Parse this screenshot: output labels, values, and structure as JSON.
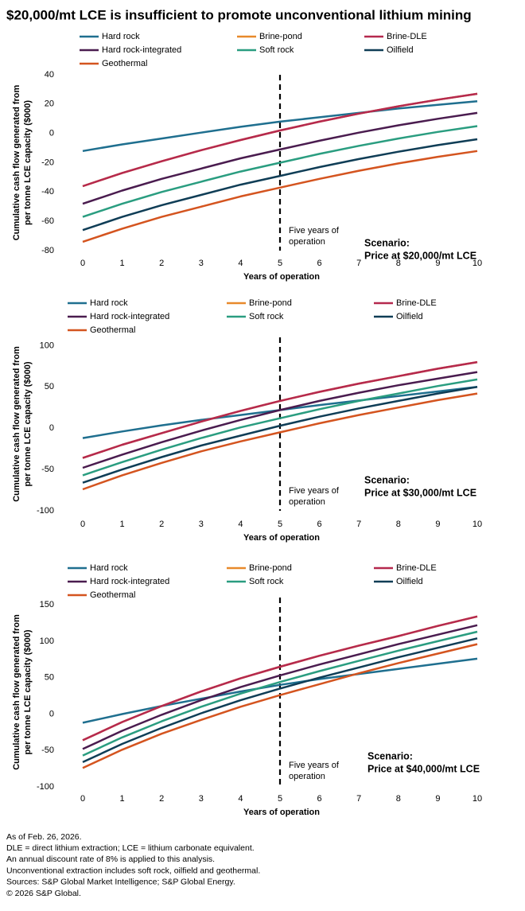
{
  "title": "$20,000/mt LCE is insufficient to promote unconventional lithium mining",
  "chart_data": [
    {
      "type": "line",
      "y_label": [
        "Cumulative cash flow generated from",
        "per tonne LCE capacity ($000)"
      ],
      "x_label": "Years of operation",
      "x": [
        0,
        1,
        2,
        3,
        4,
        5,
        6,
        7,
        8,
        9,
        10
      ],
      "xlim": [
        0,
        10
      ],
      "xticks": [
        0,
        1,
        2,
        3,
        4,
        5,
        6,
        7,
        8,
        9,
        10
      ],
      "ylim": [
        -80,
        40
      ],
      "yticks": [
        -80,
        -60,
        -40,
        -20,
        0,
        20,
        40
      ],
      "marker_x": 5,
      "annotation": [
        "Five years of",
        "operation"
      ],
      "scenario": [
        "Scenario:",
        "Price at $20,000/mt LCE"
      ],
      "series": [
        {
          "name": "Hard rock",
          "color": "#1f6f8f",
          "values": [
            -12,
            -7.5,
            -3.5,
            0.5,
            4.5,
            8,
            11,
            14,
            17,
            19.5,
            22
          ]
        },
        {
          "name": "Brine-pond",
          "color": "#e8892b",
          "values": [
            -36,
            -27,
            -19,
            -11.5,
            -4.5,
            2,
            8,
            13.5,
            18.5,
            23,
            27
          ]
        },
        {
          "name": "Brine-DLE",
          "color": "#b5294e",
          "values": [
            -36,
            -27,
            -19,
            -11.5,
            -4.5,
            2,
            8,
            13.5,
            18.5,
            23,
            27
          ]
        },
        {
          "name": "Hard rock-integrated",
          "color": "#4a1c4f",
          "values": [
            -48,
            -39,
            -31,
            -24,
            -17,
            -11,
            -5,
            0.5,
            5.5,
            10,
            14
          ]
        },
        {
          "name": "Soft rock",
          "color": "#2a9d80",
          "values": [
            -57,
            -48,
            -40,
            -33,
            -26,
            -20,
            -14,
            -8.5,
            -3.5,
            1,
            5
          ]
        },
        {
          "name": "Oilfield",
          "color": "#0f3d56",
          "values": [
            -66,
            -57,
            -49,
            -42,
            -35,
            -29,
            -23,
            -17.5,
            -12.5,
            -8,
            -4
          ]
        },
        {
          "name": "Geothermal",
          "color": "#d4541f",
          "values": [
            -74,
            -65,
            -57,
            -50,
            -43,
            -37,
            -31,
            -25.5,
            -20.5,
            -16,
            -12
          ]
        }
      ]
    },
    {
      "type": "line",
      "y_label": [
        "Cumulative cash flow generated from",
        "per tonne LCE capacity ($000)"
      ],
      "x_label": "Years of operation",
      "x": [
        0,
        1,
        2,
        3,
        4,
        5,
        6,
        7,
        8,
        9,
        10
      ],
      "xlim": [
        0,
        10
      ],
      "xticks": [
        0,
        1,
        2,
        3,
        4,
        5,
        6,
        7,
        8,
        9,
        10
      ],
      "ylim": [
        -100,
        110
      ],
      "yticks": [
        -100,
        -50,
        0,
        50,
        100
      ],
      "marker_x": 5,
      "annotation": [
        "Five years of",
        "operation"
      ],
      "scenario": [
        "Scenario:",
        "Price at $30,000/mt LCE"
      ],
      "series": [
        {
          "name": "Hard rock",
          "color": "#1f6f8f",
          "values": [
            -12,
            -4,
            3.5,
            10,
            16,
            22,
            28,
            33.5,
            39,
            44.5,
            50
          ]
        },
        {
          "name": "Brine-pond",
          "color": "#e8892b",
          "values": [
            -36,
            -20,
            -6,
            8,
            21,
            33,
            44,
            54,
            63,
            72,
            80
          ]
        },
        {
          "name": "Brine-DLE",
          "color": "#b5294e",
          "values": [
            -36,
            -20,
            -6,
            8,
            21,
            33,
            44,
            54,
            63,
            72,
            80
          ]
        },
        {
          "name": "Hard rock-integrated",
          "color": "#4a1c4f",
          "values": [
            -48,
            -32,
            -17,
            -3,
            10,
            22,
            33,
            43,
            52,
            60,
            68
          ]
        },
        {
          "name": "Soft rock",
          "color": "#2a9d80",
          "values": [
            -57,
            -41,
            -26,
            -12,
            1,
            12,
            23,
            33,
            42,
            51,
            59
          ]
        },
        {
          "name": "Oilfield",
          "color": "#0f3d56",
          "values": [
            -66,
            -50,
            -35,
            -21,
            -9,
            3,
            14,
            24,
            33,
            42,
            50
          ]
        },
        {
          "name": "Geothermal",
          "color": "#d4541f",
          "values": [
            -74,
            -57,
            -42,
            -28,
            -16,
            -5,
            6,
            16,
            25,
            34,
            42
          ]
        }
      ]
    },
    {
      "type": "line",
      "y_label": [
        "Cumulative cash flow generated from",
        "per tonne LCE capacity ($000)"
      ],
      "x_label": "Years of operation",
      "x": [
        0,
        1,
        2,
        3,
        4,
        5,
        6,
        7,
        8,
        9,
        10
      ],
      "xlim": [
        0,
        10
      ],
      "xticks": [
        0,
        1,
        2,
        3,
        4,
        5,
        6,
        7,
        8,
        9,
        10
      ],
      "ylim": [
        -100,
        160
      ],
      "yticks": [
        -100,
        -50,
        0,
        50,
        100,
        150
      ],
      "marker_x": 5,
      "annotation": [
        "Five years of",
        "operation"
      ],
      "scenario": [
        "Scenario:",
        "Price at $40,000/mt LCE"
      ],
      "series": [
        {
          "name": "Hard rock",
          "color": "#1f6f8f",
          "values": [
            -12,
            0,
            11,
            21,
            31,
            40,
            48,
            55,
            62,
            69,
            76
          ]
        },
        {
          "name": "Brine-pond",
          "color": "#e8892b",
          "values": [
            -36,
            -11,
            11,
            31,
            49,
            65,
            80,
            94,
            107,
            121,
            134
          ]
        },
        {
          "name": "Brine-DLE",
          "color": "#b5294e",
          "values": [
            -36,
            -11,
            11,
            31,
            49,
            65,
            80,
            94,
            107,
            121,
            134
          ]
        },
        {
          "name": "Hard rock-integrated",
          "color": "#4a1c4f",
          "values": [
            -48,
            -23,
            -1,
            19,
            37,
            53,
            68,
            82,
            96,
            109,
            122
          ]
        },
        {
          "name": "Soft rock",
          "color": "#2a9d80",
          "values": [
            -57,
            -32,
            -10,
            10,
            28,
            44,
            59,
            73,
            87,
            100,
            113
          ]
        },
        {
          "name": "Oilfield",
          "color": "#0f3d56",
          "values": [
            -66,
            -41,
            -19,
            1,
            19,
            35,
            50,
            64,
            78,
            91,
            104
          ]
        },
        {
          "name": "Geothermal",
          "color": "#d4541f",
          "values": [
            -74,
            -49,
            -27,
            -8,
            10,
            26,
            41,
            56,
            70,
            83,
            96
          ]
        }
      ]
    }
  ],
  "footnotes": [
    "As of Feb. 26, 2026.",
    "DLE = direct lithium extraction; LCE = lithium carbonate equivalent.",
    "An annual discount rate of 8% is applied to this analysis.",
    "Unconventional extraction includes soft rock, oilfield and geothermal.",
    "Sources: S&P Global Market Intelligence; S&P Global Energy.",
    "© 2026 S&P Global."
  ]
}
